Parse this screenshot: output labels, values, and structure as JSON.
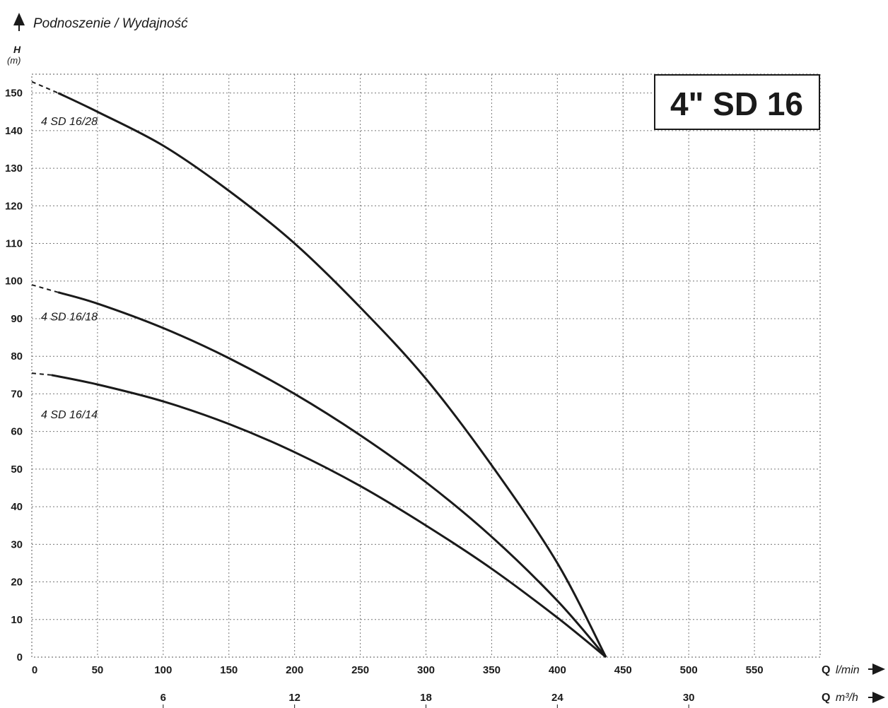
{
  "header": {
    "title": "Podnoszenie / Wydajność",
    "y_label": "H",
    "y_unit": "(m)"
  },
  "badge": {
    "text": "4\" SD 16"
  },
  "axes": {
    "x_label_main": "Q",
    "x_unit_main": "l/min",
    "x2_label_main": "Q",
    "x2_unit_main": "m³/h"
  },
  "chart_data": {
    "type": "line",
    "title": "Podnoszenie / Wydajność",
    "xlabel": "Q l/min",
    "x2label": "Q m³/h",
    "ylabel": "H (m)",
    "xlim": [
      0,
      600
    ],
    "ylim": [
      0,
      155
    ],
    "grid": true,
    "x_ticks": [
      0,
      50,
      100,
      150,
      200,
      250,
      300,
      350,
      400,
      450,
      500,
      550
    ],
    "y_ticks": [
      0,
      10,
      20,
      30,
      40,
      50,
      60,
      70,
      80,
      90,
      100,
      110,
      120,
      130,
      140,
      150
    ],
    "x2_ticks": [
      6,
      12,
      18,
      24,
      30
    ],
    "series": [
      {
        "name": "4 SD 16/28",
        "dashed_until": 20,
        "x": [
          0,
          20,
          50,
          100,
          150,
          200,
          250,
          300,
          350,
          400,
          437
        ],
        "y": [
          153,
          150,
          145,
          136,
          124,
          110,
          93,
          74,
          51,
          25,
          0
        ]
      },
      {
        "name": "4 SD 16/18",
        "dashed_until": 20,
        "x": [
          0,
          20,
          50,
          100,
          150,
          200,
          250,
          300,
          350,
          400,
          437
        ],
        "y": [
          99,
          97,
          94,
          87.5,
          79.5,
          70,
          59,
          46.5,
          32,
          15,
          0
        ]
      },
      {
        "name": "4 SD 16/14",
        "dashed_until": 15,
        "x": [
          0,
          15,
          50,
          100,
          150,
          200,
          250,
          300,
          350,
          400,
          437
        ],
        "y": [
          75.5,
          75,
          72.5,
          68,
          62,
          54.5,
          45.5,
          35,
          23.5,
          10.5,
          0
        ]
      }
    ]
  }
}
